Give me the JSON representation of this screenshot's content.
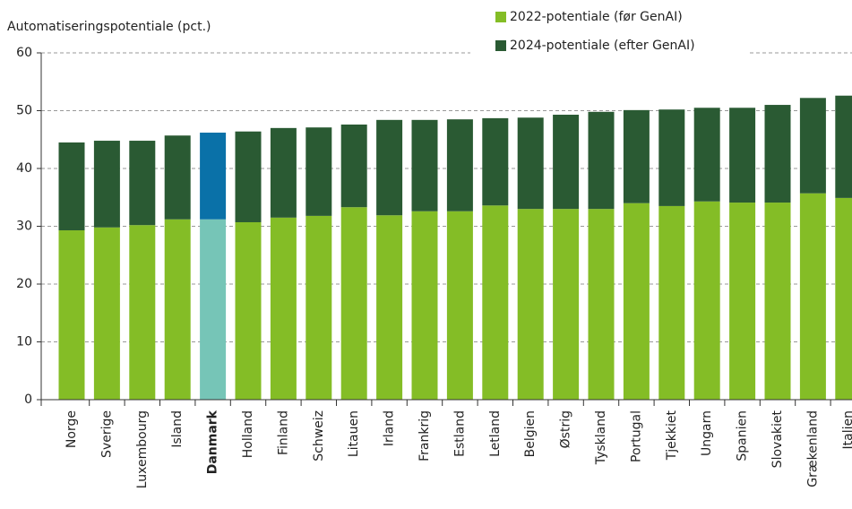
{
  "chart_data": {
    "type": "stacked_bar",
    "y_axis_label": "Automatiseringspotentiale (pct.)",
    "categories": [
      "Norge",
      "Sverige",
      "Luxembourg",
      "Island",
      "Danmark",
      "Holland",
      "Finland",
      "Schweiz",
      "Litauen",
      "Irland",
      "Frankrig",
      "Estland",
      "Letland",
      "Belgien",
      "Østrig",
      "Tyskland",
      "Portugal",
      "Tjekkiet",
      "Ungarn",
      "Spanien",
      "Slovakiet",
      "Grækenland",
      "Italien"
    ],
    "series": [
      {
        "name": "2022-potentiale (før GenAI)",
        "color": "#84bd26",
        "highlight_color": "#76c5b7",
        "values": [
          29.3,
          29.8,
          30.2,
          31.2,
          31.2,
          30.7,
          31.5,
          31.8,
          33.3,
          31.9,
          32.6,
          32.6,
          33.6,
          33.0,
          33.0,
          33.0,
          34.0,
          33.5,
          34.3,
          34.1,
          34.1,
          35.7,
          34.9
        ]
      },
      {
        "name": "2024-potentiale (efter GenAI)",
        "color": "#2a5a33",
        "highlight_color": "#0a71a8",
        "values": [
          15.2,
          15.0,
          14.6,
          14.5,
          15.0,
          15.7,
          15.5,
          15.3,
          14.3,
          16.5,
          15.8,
          15.9,
          15.1,
          15.8,
          16.3,
          16.8,
          16.1,
          16.7,
          16.2,
          16.4,
          16.9,
          16.5,
          17.7
        ]
      }
    ],
    "highlight_index": 4,
    "ylim": [
      0,
      60
    ],
    "yticks": [
      0,
      10,
      20,
      30,
      40,
      50,
      60
    ],
    "grid": true
  }
}
